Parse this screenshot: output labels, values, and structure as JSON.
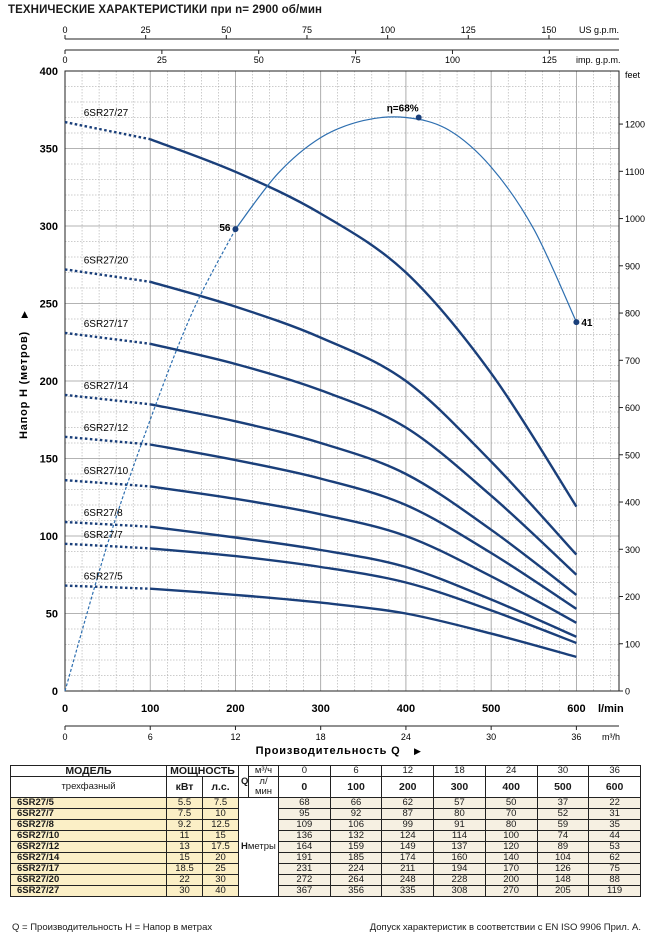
{
  "title": "ТЕХНИЧЕСКИЕ ХАРАКТЕРИСТИКИ при n= 2900 об/мин",
  "chart_data": {
    "type": "line",
    "x_unit": "l/min",
    "xlim": [
      0,
      650
    ],
    "ylim": [
      0,
      400
    ],
    "ylabel": "Напор Н (метров)",
    "xlabel": "Производительность Q",
    "y_ticks": [
      0,
      50,
      100,
      150,
      200,
      250,
      300,
      350,
      400
    ],
    "x_ticks": [
      0,
      100,
      200,
      300,
      400,
      500,
      600
    ],
    "x_m3h_label": "m³/h",
    "x_m3h_ticks": [
      0,
      6,
      12,
      18,
      24,
      30,
      36
    ],
    "feet_label": "feet",
    "feet_ticks": [
      0,
      100,
      200,
      300,
      400,
      500,
      600,
      700,
      800,
      900,
      1000,
      1100,
      1200
    ],
    "us_gpm_label": "US g.p.m.",
    "us_gpm_ticks": [
      0,
      25,
      50,
      75,
      100,
      125,
      150
    ],
    "imp_gpm_label": "imp. g.p.m.",
    "imp_gpm_ticks": [
      0,
      25,
      50,
      75,
      100,
      125
    ],
    "q_points": [
      0,
      100,
      200,
      300,
      400,
      500,
      600
    ],
    "series": [
      {
        "name": "6SR27/5",
        "values": [
          68,
          66,
          62,
          57,
          50,
          37,
          22
        ]
      },
      {
        "name": "6SR27/7",
        "values": [
          95,
          92,
          87,
          80,
          70,
          52,
          31
        ]
      },
      {
        "name": "6SR27/8",
        "values": [
          109,
          106,
          99,
          91,
          80,
          59,
          35
        ]
      },
      {
        "name": "6SR27/10",
        "values": [
          136,
          132,
          124,
          114,
          100,
          74,
          44
        ]
      },
      {
        "name": "6SR27/12",
        "values": [
          164,
          159,
          149,
          137,
          120,
          89,
          53
        ]
      },
      {
        "name": "6SR27/14",
        "values": [
          191,
          185,
          174,
          160,
          140,
          104,
          62
        ]
      },
      {
        "name": "6SR27/17",
        "values": [
          231,
          224,
          211,
          194,
          170,
          126,
          75
        ]
      },
      {
        "name": "6SR27/20",
        "values": [
          272,
          264,
          248,
          228,
          200,
          148,
          88
        ]
      },
      {
        "name": "6SR27/27",
        "values": [
          367,
          356,
          335,
          308,
          270,
          205,
          119
        ]
      }
    ],
    "efficiency": {
      "x": [
        0,
        50,
        100,
        150,
        200,
        250,
        300,
        350,
        400,
        450,
        500,
        550,
        600
      ],
      "y": [
        0,
        95,
        175,
        245,
        298,
        334,
        357,
        368,
        370,
        362,
        338,
        298,
        238
      ],
      "labels": [
        {
          "text": "56",
          "x": 200,
          "y": 298
        },
        {
          "text": "η=68%",
          "x": 415,
          "y": 370
        },
        {
          "text": "41",
          "x": 600,
          "y": 238
        }
      ]
    }
  },
  "table": {
    "model_header": "МОДЕЛЬ",
    "model_sub": "трехфазный",
    "power_header": "МОЩНОСТЬ",
    "kw_label": "кВт",
    "hp_label": "л.с.",
    "q_symbol": "Q",
    "q_unit_m3h": "м³/ч",
    "q_unit_lmin": "л/мин",
    "h_symbol": "H",
    "h_unit": "метры",
    "q_m3h": [
      "0",
      "6",
      "12",
      "18",
      "24",
      "30",
      "36"
    ],
    "q_lmin": [
      "0",
      "100",
      "200",
      "300",
      "400",
      "500",
      "600"
    ],
    "rows": [
      {
        "model": "6SR27/5",
        "kw": "5.5",
        "hp": "7.5",
        "h": [
          "68",
          "66",
          "62",
          "57",
          "50",
          "37",
          "22"
        ]
      },
      {
        "model": "6SR27/7",
        "kw": "7.5",
        "hp": "10",
        "h": [
          "95",
          "92",
          "87",
          "80",
          "70",
          "52",
          "31"
        ]
      },
      {
        "model": "6SR27/8",
        "kw": "9.2",
        "hp": "12.5",
        "h": [
          "109",
          "106",
          "99",
          "91",
          "80",
          "59",
          "35"
        ]
      },
      {
        "model": "6SR27/10",
        "kw": "11",
        "hp": "15",
        "h": [
          "136",
          "132",
          "124",
          "114",
          "100",
          "74",
          "44"
        ]
      },
      {
        "model": "6SR27/12",
        "kw": "13",
        "hp": "17.5",
        "h": [
          "164",
          "159",
          "149",
          "137",
          "120",
          "89",
          "53"
        ]
      },
      {
        "model": "6SR27/14",
        "kw": "15",
        "hp": "20",
        "h": [
          "191",
          "185",
          "174",
          "160",
          "140",
          "104",
          "62"
        ]
      },
      {
        "model": "6SR27/17",
        "kw": "18.5",
        "hp": "25",
        "h": [
          "231",
          "224",
          "211",
          "194",
          "170",
          "126",
          "75"
        ]
      },
      {
        "model": "6SR27/20",
        "kw": "22",
        "hp": "30",
        "h": [
          "272",
          "264",
          "248",
          "228",
          "200",
          "148",
          "88"
        ]
      },
      {
        "model": "6SR27/27",
        "kw": "30",
        "hp": "40",
        "h": [
          "367",
          "356",
          "335",
          "308",
          "270",
          "205",
          "119"
        ]
      }
    ]
  },
  "footer": {
    "left": "Q = Производительность   H = Напор в метрах",
    "right": "Допуск характеристик в соответствии с EN ISO 9906 Прил.  A."
  },
  "colors": {
    "curve": "#1a3f7a",
    "efficiency": "#2e6fb0",
    "grid": "#9a9a9a",
    "model_cell": "#fbefc6",
    "value_cell": "#f6f0e2"
  }
}
